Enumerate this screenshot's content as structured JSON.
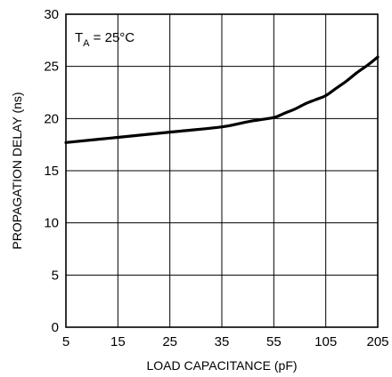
{
  "chart_data": {
    "type": "line",
    "title": "",
    "xlabel": "LOAD CAPACITANCE (pF)",
    "ylabel": "PROPAGATION DELAY (ns)",
    "x_ticks": [
      "5",
      "15",
      "25",
      "35",
      "55",
      "105",
      "205"
    ],
    "y_ticks": [
      "0",
      "5",
      "10",
      "15",
      "20",
      "25",
      "30"
    ],
    "ylim": [
      0,
      30
    ],
    "grid": true,
    "annotation": {
      "main": "T",
      "sub": "A",
      "rest": " = 25°C"
    },
    "series": [
      {
        "x": [
          5,
          15,
          25,
          35,
          45,
          55,
          65,
          75,
          85,
          95,
          105,
          125,
          145,
          165,
          185,
          205
        ],
        "values": [
          17.7,
          18.2,
          18.7,
          19.2,
          19.7,
          20.1,
          20.5,
          20.9,
          21.4,
          21.8,
          22.2,
          22.9,
          23.6,
          24.4,
          25.1,
          25.9
        ]
      }
    ]
  }
}
